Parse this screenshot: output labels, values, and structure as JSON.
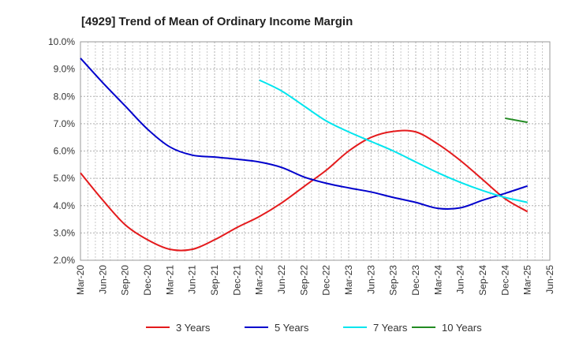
{
  "chart_data": {
    "type": "line",
    "title": "[4929]  Trend of Mean of Ordinary Income Margin",
    "xlabel": "",
    "ylabel": "",
    "ylim": [
      2.0,
      10.0
    ],
    "y_ticks": [
      "2.0%",
      "3.0%",
      "4.0%",
      "5.0%",
      "6.0%",
      "7.0%",
      "8.0%",
      "9.0%",
      "10.0%"
    ],
    "y_tick_values": [
      2,
      3,
      4,
      5,
      6,
      7,
      8,
      9,
      10
    ],
    "x_ticks": [
      "Mar-20",
      "Jun-20",
      "Sep-20",
      "Dec-20",
      "Mar-21",
      "Jun-21",
      "Sep-21",
      "Dec-21",
      "Mar-22",
      "Jun-22",
      "Sep-22",
      "Dec-22",
      "Mar-23",
      "Jun-23",
      "Sep-23",
      "Dec-23",
      "Mar-24",
      "Jun-24",
      "Sep-24",
      "Dec-24",
      "Mar-25",
      "Jun-25"
    ],
    "grid": true,
    "legend_position": "bottom",
    "series": [
      {
        "name": "3 Years",
        "color": "#e41a1c",
        "x": [
          "Mar-20",
          "Jun-20",
          "Sep-20",
          "Dec-20",
          "Mar-21",
          "Jun-21",
          "Sep-21",
          "Dec-21",
          "Mar-22",
          "Jun-22",
          "Sep-22",
          "Dec-22",
          "Mar-23",
          "Jun-23",
          "Sep-23",
          "Dec-23",
          "Mar-24",
          "Jun-24",
          "Sep-24",
          "Dec-24",
          "Mar-25"
        ],
        "values": [
          5.2,
          4.2,
          3.3,
          2.75,
          2.4,
          2.4,
          2.75,
          3.2,
          3.6,
          4.1,
          4.7,
          5.3,
          6.0,
          6.5,
          6.72,
          6.7,
          6.25,
          5.65,
          4.95,
          4.25,
          3.78
        ]
      },
      {
        "name": "5 Years",
        "color": "#0000cc",
        "x": [
          "Mar-20",
          "Jun-20",
          "Sep-20",
          "Dec-20",
          "Mar-21",
          "Jun-21",
          "Sep-21",
          "Dec-21",
          "Mar-22",
          "Jun-22",
          "Sep-22",
          "Dec-22",
          "Mar-23",
          "Jun-23",
          "Sep-23",
          "Dec-23",
          "Mar-24",
          "Jun-24",
          "Sep-24",
          "Dec-24",
          "Mar-25"
        ],
        "values": [
          9.4,
          8.5,
          7.65,
          6.8,
          6.15,
          5.85,
          5.78,
          5.7,
          5.6,
          5.4,
          5.05,
          4.82,
          4.65,
          4.5,
          4.3,
          4.12,
          3.9,
          3.92,
          4.2,
          4.45,
          4.72
        ]
      },
      {
        "name": "7 Years",
        "color": "#00e5ee",
        "x": [
          "Mar-22",
          "Jun-22",
          "Sep-22",
          "Dec-22",
          "Mar-23",
          "Jun-23",
          "Sep-23",
          "Dec-23",
          "Mar-24",
          "Jun-24",
          "Sep-24",
          "Dec-24",
          "Mar-25"
        ],
        "values": [
          8.6,
          8.2,
          7.65,
          7.1,
          6.7,
          6.35,
          6.0,
          5.6,
          5.2,
          4.85,
          4.55,
          4.3,
          4.12
        ]
      },
      {
        "name": "10 Years",
        "color": "#228b22",
        "x": [
          "Dec-24",
          "Mar-25"
        ],
        "values": [
          7.2,
          7.05
        ]
      }
    ]
  }
}
